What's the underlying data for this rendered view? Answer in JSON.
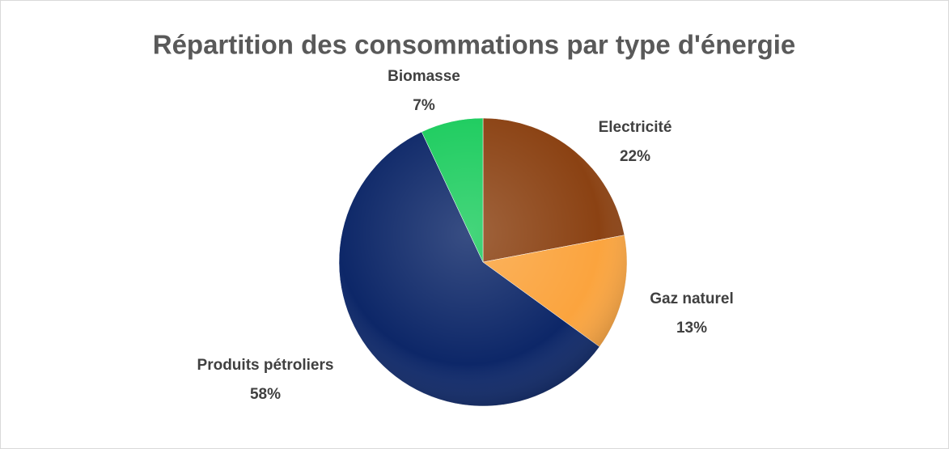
{
  "chart_data": {
    "type": "pie",
    "title": "Répartition des consommations par type d'énergie",
    "categories": [
      "Electricité",
      "Gaz naturel",
      "Produits pétroliers",
      "Biomasse"
    ],
    "values": [
      22,
      13,
      58,
      7
    ],
    "value_labels": [
      "22%",
      "13%",
      "58%",
      "7%"
    ],
    "colors": [
      "#8b4213",
      "#fba43e",
      "#0d2768",
      "#1ccc5e"
    ]
  }
}
